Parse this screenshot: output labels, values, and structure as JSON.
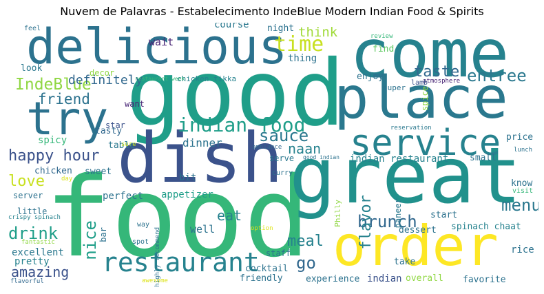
{
  "title": "Nuvem de Palavras - Estabelecimento IndeBlue Modern Indian Food & Spirits",
  "words": [
    {
      "text": "good",
      "color": "#1f9e89"
    },
    {
      "text": "food",
      "color": "#35b779"
    },
    {
      "text": "come",
      "color": "#26828e"
    },
    {
      "text": "place",
      "color": "#2a788e"
    },
    {
      "text": "great",
      "color": "#21918c"
    },
    {
      "text": "dish",
      "color": "#3b528b"
    },
    {
      "text": "delicious",
      "color": "#2c728e"
    },
    {
      "text": "order",
      "color": "#fde725"
    },
    {
      "text": "try",
      "color": "#2c728e"
    },
    {
      "text": "service",
      "color": "#26828e"
    },
    {
      "text": "restaurant",
      "color": "#26828e"
    },
    {
      "text": "indian food",
      "color": "#1f9e89"
    },
    {
      "text": "time",
      "color": "#c8e020"
    },
    {
      "text": "menu",
      "color": "#2a788e"
    },
    {
      "text": "taste",
      "color": "#31688e"
    },
    {
      "text": "entree",
      "color": "#2a788e"
    },
    {
      "text": "IndeBlue",
      "color": "#90d743"
    },
    {
      "text": "friend",
      "color": "#2c728e"
    },
    {
      "text": "definitely",
      "color": "#31688e"
    },
    {
      "text": "happy hour",
      "color": "#3b528b"
    },
    {
      "text": "sauce",
      "color": "#2a788e"
    },
    {
      "text": "naan",
      "color": "#26828e"
    },
    {
      "text": "love",
      "color": "#c8e020"
    },
    {
      "text": "drink",
      "color": "#1f9e89"
    },
    {
      "text": "nice",
      "color": "#1f9e89"
    },
    {
      "text": "brunch",
      "color": "#31688e"
    },
    {
      "text": "meal",
      "color": "#26828e"
    },
    {
      "text": "go",
      "color": "#31688e"
    },
    {
      "text": "amazing",
      "color": "#3b528b"
    },
    {
      "text": "eat",
      "color": "#26828e"
    },
    {
      "text": "flavor",
      "color": "#26828e"
    },
    {
      "text": "think",
      "color": "#a0da39"
    },
    {
      "text": "wait",
      "color": "#482475"
    },
    {
      "text": "dinner",
      "color": "#2c728e"
    },
    {
      "text": "course",
      "color": "#2a788e"
    },
    {
      "text": "night",
      "color": "#2c728e"
    },
    {
      "text": "thing",
      "color": "#2c728e"
    },
    {
      "text": "find",
      "color": "#5ec962"
    },
    {
      "text": "enjoy",
      "color": "#2c728e"
    },
    {
      "text": "look",
      "color": "#2a788e"
    },
    {
      "text": "decor",
      "color": "#90d743"
    },
    {
      "text": "chicken tikka",
      "color": "#26828e"
    },
    {
      "text": "restaurant week",
      "color": "#35b779"
    },
    {
      "text": "super",
      "color": "#2c728e"
    },
    {
      "text": "atmosphere",
      "color": "#482475"
    },
    {
      "text": "lamb",
      "color": "#3b528b"
    },
    {
      "text": "spice",
      "color": "#90d743"
    },
    {
      "text": "review",
      "color": "#35b779"
    },
    {
      "text": "want",
      "color": "#482475"
    },
    {
      "text": "star",
      "color": "#3b528b"
    },
    {
      "text": "tasty",
      "color": "#31688e"
    },
    {
      "text": "spicy",
      "color": "#35b779"
    },
    {
      "text": "table",
      "color": "#2a788e"
    },
    {
      "text": "sure",
      "color": "#c8e020"
    },
    {
      "text": "chicken",
      "color": "#31688e"
    },
    {
      "text": "sweet",
      "color": "#2c728e"
    },
    {
      "text": "bit",
      "color": "#2c728e"
    },
    {
      "text": "serve",
      "color": "#2a788e"
    },
    {
      "text": "indian restaurant",
      "color": "#26828e"
    },
    {
      "text": "small",
      "color": "#2c728e"
    },
    {
      "text": "ambiance",
      "color": "#31688e"
    },
    {
      "text": "good indian",
      "color": "#2c728e"
    },
    {
      "text": "curry",
      "color": "#2c728e"
    },
    {
      "text": "day",
      "color": "#dde318"
    },
    {
      "text": "perfect",
      "color": "#2c728e"
    },
    {
      "text": "appetizer",
      "color": "#1f9e89"
    },
    {
      "text": "server",
      "color": "#2c728e"
    },
    {
      "text": "little",
      "color": "#2c728e"
    },
    {
      "text": "crispy spinach",
      "color": "#26828e"
    },
    {
      "text": "bar",
      "color": "#2c728e"
    },
    {
      "text": "well",
      "color": "#2c728e"
    },
    {
      "text": "way",
      "color": "#2c728e"
    },
    {
      "text": "highly recommend",
      "color": "#2c728e"
    },
    {
      "text": "spot",
      "color": "#2c728e"
    },
    {
      "text": "excellent",
      "color": "#2a788e"
    },
    {
      "text": "pretty",
      "color": "#26828e"
    },
    {
      "text": "fantastic",
      "color": "#90d743"
    },
    {
      "text": "flavorful",
      "color": "#31688e"
    },
    {
      "text": "awesome",
      "color": "#dde318"
    },
    {
      "text": "cocktail",
      "color": "#2c728e"
    },
    {
      "text": "staff",
      "color": "#2c728e"
    },
    {
      "text": "friendly",
      "color": "#2c728e"
    },
    {
      "text": "experience",
      "color": "#2c728e"
    },
    {
      "text": "indian",
      "color": "#3b528b"
    },
    {
      "text": "overall",
      "color": "#90d743"
    },
    {
      "text": "favorite",
      "color": "#2c728e"
    },
    {
      "text": "option",
      "color": "#dde318"
    },
    {
      "text": "Philly",
      "color": "#90d743"
    },
    {
      "text": "paneer",
      "color": "#2a788e"
    },
    {
      "text": "dessert",
      "color": "#2c728e"
    },
    {
      "text": "start",
      "color": "#2c728e"
    },
    {
      "text": "spinach chaat",
      "color": "#26828e"
    },
    {
      "text": "take",
      "color": "#2c728e"
    },
    {
      "text": "rice",
      "color": "#2c728e"
    },
    {
      "text": "know",
      "color": "#2c728e"
    },
    {
      "text": "visit",
      "color": "#35b779"
    },
    {
      "text": "price",
      "color": "#2c728e"
    },
    {
      "text": "lunch",
      "color": "#2c728e"
    },
    {
      "text": "reservation",
      "color": "#2a788e"
    },
    {
      "text": "feel",
      "color": "#2c728e"
    }
  ]
}
